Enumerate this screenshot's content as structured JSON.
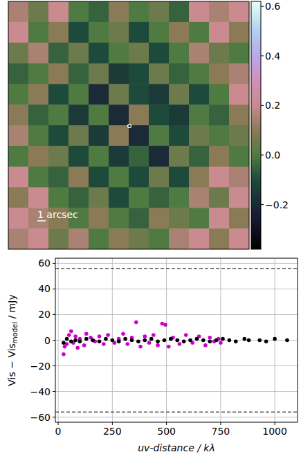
{
  "chart_data": [
    {
      "type": "heatmap",
      "tick_labels": false,
      "annotations": [
        "1 arcsec"
      ],
      "cells": [
        [
          0.15,
          0.05,
          0.2,
          0.0,
          -0.05,
          0.1,
          0.0,
          0.05,
          -0.05,
          0.2,
          0.15,
          0.2
        ],
        [
          0.2,
          0.0,
          0.1,
          -0.1,
          0.0,
          0.05,
          -0.1,
          0.0,
          0.1,
          0.0,
          0.2,
          0.1
        ],
        [
          0.05,
          0.15,
          -0.05,
          0.05,
          -0.1,
          0.0,
          0.05,
          -0.1,
          0.0,
          0.15,
          0.05,
          0.0
        ],
        [
          -0.05,
          0.0,
          0.1,
          -0.05,
          0.05,
          -0.15,
          -0.1,
          0.05,
          -0.05,
          0.0,
          0.1,
          0.15
        ],
        [
          0.0,
          0.1,
          -0.1,
          0.0,
          -0.2,
          0.05,
          -0.1,
          -0.15,
          0.05,
          -0.1,
          0.0,
          0.2
        ],
        [
          0.1,
          -0.05,
          0.0,
          -0.15,
          0.0,
          -0.2,
          0.1,
          -0.1,
          -0.15,
          0.0,
          -0.05,
          0.1
        ],
        [
          0.15,
          0.0,
          -0.1,
          0.05,
          -0.15,
          0.1,
          -0.2,
          0.0,
          -0.1,
          0.05,
          0.0,
          0.05
        ],
        [
          0.0,
          0.1,
          0.05,
          -0.1,
          0.0,
          -0.15,
          -0.05,
          -0.2,
          0.05,
          -0.05,
          0.1,
          0.0
        ],
        [
          0.2,
          0.0,
          -0.05,
          0.1,
          -0.1,
          0.0,
          -0.1,
          0.05,
          -0.1,
          0.1,
          0.2,
          0.15
        ],
        [
          0.1,
          0.2,
          0.0,
          -0.05,
          0.05,
          -0.1,
          0.0,
          -0.05,
          0.0,
          0.15,
          0.05,
          0.2
        ],
        [
          0.2,
          0.15,
          0.1,
          0.0,
          0.1,
          0.0,
          -0.05,
          0.1,
          0.05,
          0.0,
          0.2,
          0.1
        ],
        [
          0.15,
          0.2,
          0.05,
          0.15,
          0.0,
          0.1,
          0.05,
          0.0,
          0.15,
          0.2,
          0.1,
          0.2
        ]
      ],
      "colorbar": {
        "range": [
          -0.38,
          0.62
        ],
        "ticks": [
          {
            "value": -0.2,
            "label": "−0.2"
          },
          {
            "value": 0,
            "label": "0.0"
          },
          0.2,
          0.4,
          0.6
        ]
      }
    },
    {
      "type": "scatter",
      "xlabel": "uv-distance / kλ",
      "ylabel": {
        "main": "Vis − Vis",
        "sub": "model",
        "unit": " / mJy"
      },
      "xlim": [
        -13,
        1105
      ],
      "ylim": [
        -64,
        64
      ],
      "xticks": [
        0,
        250,
        500,
        750,
        1000
      ],
      "yticks": [
        {
          "value": -60,
          "label": "−60"
        },
        {
          "value": -40,
          "label": "−40"
        },
        {
          "value": -20,
          "label": "−20"
        },
        0,
        20,
        40,
        60
      ],
      "grid": true,
      "hlines": [
        56,
        -56
      ],
      "series": [
        {
          "color": "#cc00cc",
          "marker": "circle",
          "x": [
            25,
            30,
            40,
            50,
            60,
            70,
            80,
            90,
            100,
            120,
            130,
            150,
            170,
            190,
            210,
            230,
            260,
            280,
            300,
            320,
            340,
            360,
            380,
            400,
            420,
            440,
            460,
            480,
            495,
            510,
            530,
            560,
            590,
            620,
            650,
            680,
            700,
            720,
            740,
            750
          ],
          "values": [
            -11,
            -5,
            -3,
            4,
            7,
            -2,
            3,
            -6,
            1,
            -4,
            5,
            2,
            -1,
            3,
            -3,
            4,
            -2,
            1,
            5,
            -3,
            2,
            14,
            -5,
            3,
            -2,
            4,
            -4,
            13,
            12,
            -5,
            2,
            -3,
            4,
            -2,
            3,
            -4,
            2,
            -1,
            1,
            -2
          ]
        },
        {
          "color": "#000000",
          "marker": "circle",
          "x": [
            25,
            40,
            60,
            80,
            100,
            130,
            160,
            190,
            220,
            250,
            280,
            310,
            340,
            370,
            400,
            430,
            460,
            490,
            520,
            550,
            580,
            610,
            640,
            670,
            700,
            730,
            760,
            790,
            820,
            860,
            880,
            930,
            960,
            1000,
            1057
          ],
          "values": [
            -2,
            1,
            -1,
            0,
            -1,
            1,
            0,
            -1,
            1,
            0,
            -1,
            1,
            0,
            -1,
            0,
            1,
            -1,
            0,
            1,
            0,
            -1,
            0,
            1,
            0,
            -1,
            0,
            1,
            0,
            -1,
            1,
            0,
            0,
            -1,
            1,
            0
          ]
        }
      ]
    }
  ]
}
